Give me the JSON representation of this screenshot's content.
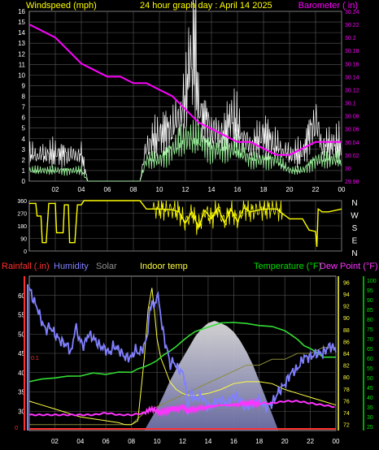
{
  "colors": {
    "background": "#000000",
    "grid": "#5a5a5a",
    "frame": "#9a9a9a",
    "wind_gust": "#ffffff",
    "wind_avg": "#9ef59e",
    "wind_dir_avg": "#00c800",
    "barometer": "#ff00ff",
    "direction": "#ffff00",
    "rainfall": "#ff3030",
    "humidity": "#8080ff",
    "solar": "#c8c8c8",
    "indoor_temp": "#ffff40",
    "temperature": "#33dd33",
    "dew_point": "#ff33ff",
    "yellow_text": "#ffff00",
    "green_text": "#00e000"
  },
  "chart_data": [
    {
      "type": "area",
      "title": "24 hour graph day : April 14 2025",
      "left_axis_label": "Windspeed (mph)",
      "right_axis_label": "Barometer ( in)",
      "x_ticks": [
        "02",
        "04",
        "06",
        "08",
        "10",
        "12",
        "14",
        "16",
        "18",
        "20",
        "22",
        "00"
      ],
      "y_ticks": [
        "0",
        "1",
        "2",
        "3",
        "4",
        "5",
        "6",
        "7",
        "8",
        "9",
        "10",
        "11",
        "12",
        "13",
        "14",
        "15",
        "16"
      ],
      "ylim": [
        0,
        16
      ],
      "y2_ticks": [
        "29.98",
        "30",
        "30.02",
        "30.04",
        "30.06",
        "30.08",
        "30.1",
        "30.12",
        "30.14",
        "30.16",
        "30.18",
        "30.2",
        "30.22",
        "30.24"
      ],
      "y2lim": [
        29.98,
        30.24
      ],
      "grid": true,
      "series": [
        {
          "name": "Barometer",
          "x": [
            0,
            1,
            2,
            3,
            4,
            5,
            6,
            7,
            8,
            9,
            10,
            11,
            12,
            13,
            14,
            15,
            16,
            17,
            18,
            19,
            20,
            21,
            22,
            23,
            24
          ],
          "values": [
            30.22,
            30.21,
            30.2,
            30.18,
            30.16,
            30.15,
            30.14,
            30.14,
            30.13,
            30.13,
            30.12,
            30.11,
            30.09,
            30.07,
            30.06,
            30.05,
            30.04,
            30.04,
            30.03,
            30.02,
            30.02,
            30.03,
            30.04,
            30.04,
            30.04
          ]
        },
        {
          "name": "Wind gust",
          "gust": true,
          "x": [
            0,
            1,
            2,
            3,
            4,
            4.5,
            8.5,
            9,
            10,
            11,
            12,
            12.3,
            12.5,
            12.7,
            13,
            14,
            15,
            15.5,
            16,
            17,
            18,
            19,
            20,
            21,
            21.7,
            22,
            22.5,
            23,
            24
          ],
          "values": [
            3,
            3,
            3,
            3,
            3,
            0,
            0,
            4,
            5,
            6,
            9,
            14,
            12,
            16,
            8,
            6,
            5,
            7,
            6,
            4,
            5,
            4,
            3,
            3,
            6,
            7,
            4,
            4,
            4
          ]
        },
        {
          "name": "Wind average",
          "x": [
            0,
            1,
            2,
            3,
            4,
            4.5,
            8.5,
            9,
            10,
            11,
            12,
            13,
            14,
            15,
            16,
            17,
            18,
            19,
            20,
            21,
            22,
            23,
            24
          ],
          "values": [
            1,
            1,
            1,
            1,
            1,
            0,
            0,
            2,
            2,
            3,
            4,
            4,
            3,
            3,
            3,
            2,
            2,
            2,
            1,
            1,
            2,
            2,
            2
          ]
        }
      ]
    },
    {
      "type": "line",
      "y_ticks": [
        "0",
        "90",
        "180",
        "270",
        "360"
      ],
      "ylim": [
        0,
        360
      ],
      "direction_labels": [
        "N",
        "W",
        "S",
        "E",
        "N"
      ],
      "x_ticks": [
        "02",
        "04",
        "06",
        "08",
        "10",
        "12",
        "14",
        "16",
        "18",
        "20",
        "22",
        "00"
      ],
      "grid": true,
      "series": [
        {
          "name": "Wind direction",
          "x": [
            0,
            0.5,
            0.6,
            0.9,
            1,
            1.3,
            1.5,
            2,
            2.1,
            2.6,
            2.7,
            3,
            3.1,
            3.5,
            3.7,
            4,
            4.2,
            5,
            6,
            7,
            8,
            8.5,
            9,
            10,
            11,
            11.5,
            12,
            12.5,
            13,
            13.5,
            14,
            14.5,
            15,
            15.5,
            16,
            16.5,
            17,
            18,
            18.5,
            19,
            20,
            20.5,
            21,
            21.5,
            22,
            22.1,
            22.2,
            22.5,
            23,
            24
          ],
          "values": [
            340,
            340,
            250,
            250,
            60,
            60,
            340,
            340,
            130,
            130,
            330,
            330,
            60,
            60,
            330,
            330,
            360,
            360,
            360,
            360,
            360,
            360,
            300,
            300,
            295,
            280,
            200,
            280,
            170,
            290,
            230,
            310,
            200,
            300,
            210,
            310,
            280,
            300,
            300,
            300,
            230,
            230,
            230,
            150,
            140,
            30,
            300,
            280,
            280,
            300
          ]
        }
      ]
    },
    {
      "type": "line",
      "labels": {
        "rainfall": "Rainfall (.in)",
        "humidity": "Humidity",
        "solar": "Solar",
        "indoor": "Indoor temp",
        "temperature": "Temperature (°F)",
        "dewpoint": "Dew Point (°F)"
      },
      "x_ticks": [
        "02",
        "04",
        "06",
        "08",
        "10",
        "12",
        "14",
        "16",
        "18",
        "20",
        "22",
        "00"
      ],
      "humidity_ticks": [
        "30",
        "35",
        "40",
        "45",
        "50",
        "55",
        "60"
      ],
      "humidity_lim": [
        25,
        65
      ],
      "rain_tick": "0.1",
      "rain_zero": "0",
      "indoor_ticks": [
        "72",
        "74",
        "76",
        "78",
        "80",
        "82",
        "84",
        "86",
        "88",
        "90",
        "92",
        "94",
        "96"
      ],
      "indoor_lim": [
        71,
        97
      ],
      "temp_ticks": [
        "25",
        "30",
        "35",
        "40",
        "45",
        "50",
        "55",
        "60",
        "65",
        "70",
        "75",
        "80",
        "85",
        "90",
        "95",
        "100"
      ],
      "temp_lim": [
        23,
        102
      ],
      "grid": true,
      "series": [
        {
          "name": "Humidity",
          "x": [
            0,
            0.3,
            0.6,
            1,
            1.3,
            1.6,
            2,
            2.5,
            3,
            3.3,
            3.6,
            4,
            4.3,
            4.6,
            5,
            5.5,
            6,
            6.3,
            6.6,
            7,
            7.5,
            8,
            8.3,
            8.6,
            9,
            9.2,
            9.4,
            9.6,
            9.8,
            10,
            10.2,
            10.4,
            10.6,
            10.8,
            11,
            11.3,
            11.6,
            12,
            12.2,
            12.4,
            12.6,
            13,
            13.5,
            14,
            14.5,
            15,
            15.5,
            16,
            16.5,
            17,
            17.5,
            18,
            18.5,
            19,
            19.5,
            20,
            20.5,
            21,
            21.5,
            22,
            22.5,
            23,
            23.5,
            24
          ],
          "values": [
            62,
            59,
            57,
            53,
            51,
            52,
            50,
            48,
            47,
            45,
            52,
            48,
            47,
            50,
            49,
            47,
            46,
            45,
            47,
            46,
            44,
            44,
            46,
            45,
            47,
            49,
            55,
            59,
            56,
            61,
            57,
            52,
            48,
            46,
            42,
            43,
            41,
            40,
            38,
            30,
            35,
            33,
            34,
            31,
            32,
            33,
            32,
            34,
            33,
            31,
            32,
            33,
            31,
            32,
            35,
            37,
            40,
            41,
            44,
            44,
            45,
            45,
            47,
            46
          ]
        },
        {
          "name": "Temperature",
          "x": [
            0,
            1,
            2,
            3,
            4,
            5,
            6,
            7,
            8,
            8.5,
            9,
            9.5,
            10,
            10.5,
            11,
            11.5,
            12,
            12.5,
            13,
            14,
            15,
            16,
            17,
            18,
            19,
            20,
            20.5,
            21,
            21.5,
            22,
            22.5,
            23,
            24
          ],
          "values": [
            48,
            49,
            50,
            51,
            51,
            52,
            52,
            53,
            53,
            54,
            56,
            57,
            59,
            61,
            64,
            66,
            69,
            71,
            74,
            76,
            78,
            78,
            78,
            77,
            76,
            74,
            72,
            70,
            66,
            65,
            63,
            61,
            60
          ]
        },
        {
          "name": "Dew Point",
          "x": [
            0,
            1,
            2,
            3,
            4,
            5,
            6,
            7,
            8,
            9,
            9.5,
            10,
            10.5,
            11,
            11.5,
            12,
            12.5,
            13,
            14,
            15,
            16,
            17,
            18,
            19,
            20,
            21,
            22,
            23,
            24
          ],
          "values": [
            31,
            31,
            31,
            31,
            31,
            31,
            32,
            31,
            31,
            32,
            34,
            33,
            32,
            34,
            34,
            35,
            33,
            34,
            35,
            36,
            36,
            37,
            37,
            37,
            38,
            38,
            37,
            36,
            35
          ]
        },
        {
          "name": "Solar",
          "x": [
            0,
            3,
            5,
            7,
            8,
            9,
            10,
            11,
            12,
            13,
            14,
            15,
            16,
            17,
            18,
            19,
            19.5,
            20,
            21,
            22,
            23,
            24
          ],
          "values": [
            72,
            72,
            72,
            72,
            72,
            74,
            75,
            76,
            77,
            78,
            79,
            80,
            81,
            82,
            82,
            83,
            83,
            83,
            84,
            84,
            85,
            85
          ]
        },
        {
          "name": "Indoor temp",
          "x": [
            0,
            1,
            2,
            3,
            4,
            5,
            6,
            7,
            7.5,
            8,
            8.5,
            9,
            9.3,
            9.6,
            9.8,
            10,
            10.3,
            10.6,
            11,
            11.5,
            12,
            12.5,
            13,
            14,
            15,
            16,
            17,
            18,
            19,
            20,
            21,
            22,
            23,
            24
          ],
          "values": [
            38,
            36,
            34,
            32,
            30,
            29,
            28,
            27,
            26,
            26,
            28,
            60,
            85,
            96,
            84,
            70,
            60,
            55,
            48,
            44,
            42,
            41,
            41,
            42,
            44,
            47,
            48,
            48,
            47,
            44,
            42,
            40,
            38,
            36
          ]
        },
        {
          "name": "Solar radiation",
          "shape": "dome",
          "x": [
            9,
            9.5,
            10,
            10.5,
            11,
            11.5,
            12,
            12.5,
            13,
            13.5,
            14,
            14.5,
            15,
            15.5,
            16,
            16.5,
            17,
            17.5,
            18,
            18.5,
            19,
            19.5
          ],
          "values": [
            0,
            0.1,
            0.2,
            0.32,
            0.45,
            0.56,
            0.66,
            0.76,
            0.86,
            0.93,
            0.98,
            1.0,
            0.98,
            0.95,
            0.9,
            0.82,
            0.72,
            0.6,
            0.45,
            0.3,
            0.15,
            0
          ]
        },
        {
          "name": "Rainfall",
          "x": [
            0,
            24
          ],
          "values": [
            0,
            0
          ]
        }
      ]
    }
  ]
}
